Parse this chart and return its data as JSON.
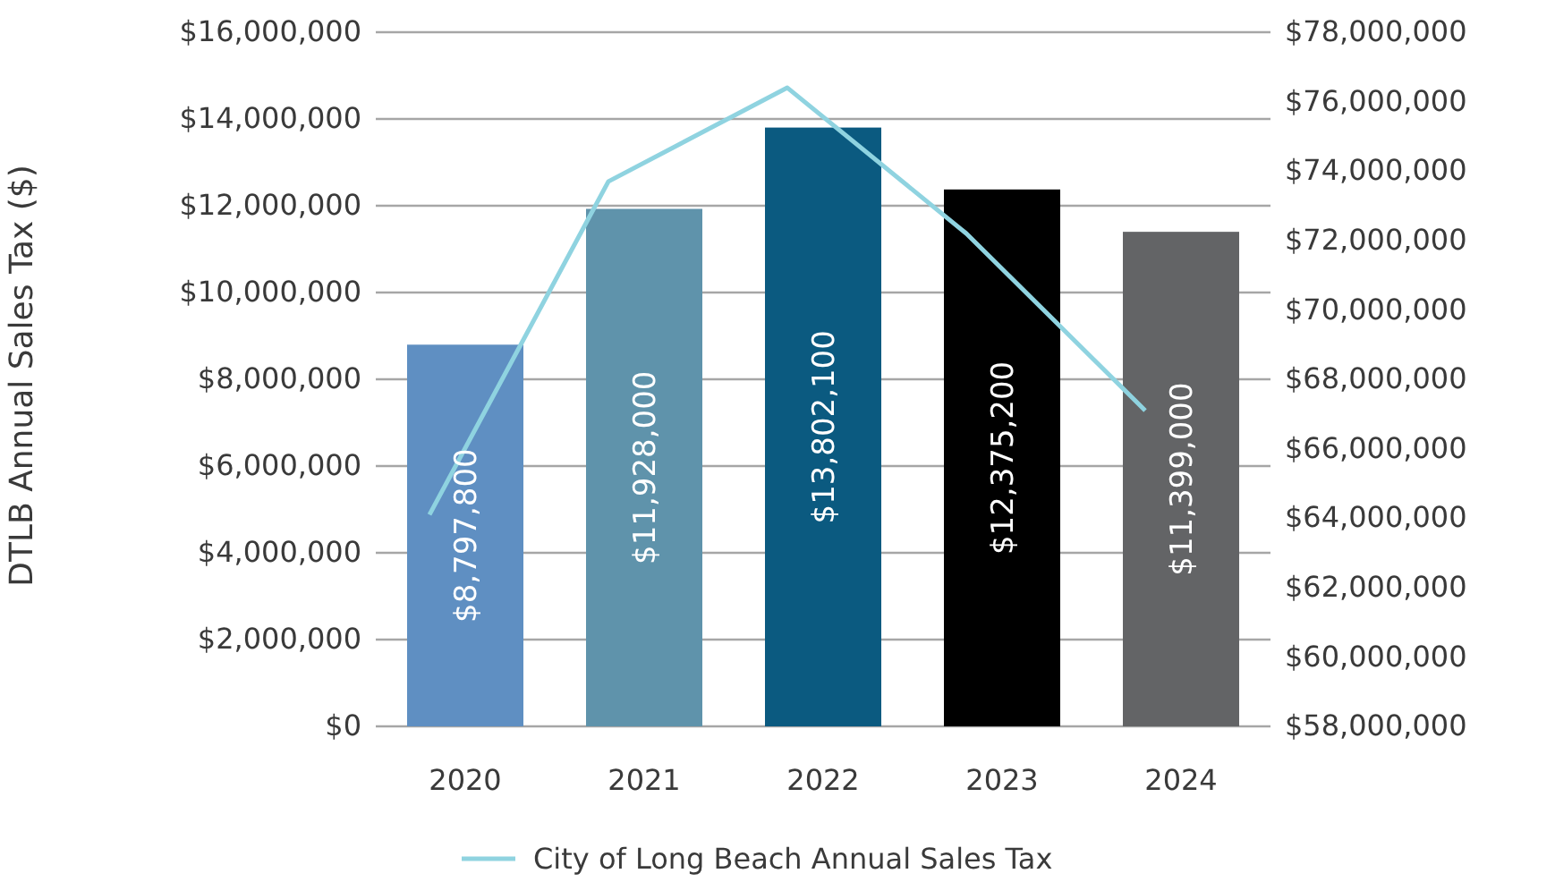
{
  "chart_data": {
    "type": "bar",
    "ylabel": "DTLB Annual Sales Tax ($)",
    "categories": [
      "2020",
      "2021",
      "2022",
      "2023",
      "2024"
    ],
    "series": [
      {
        "colors": [
          "#5f8fc2",
          "#5f93ab",
          "#0b5a80",
          "#000000",
          "#636466"
        ],
        "values": [
          8797800,
          11928000,
          13802100,
          12375200,
          11399000
        ],
        "value_labels": [
          "$8,797,800",
          "$11,928,000",
          "$13,802,100",
          "$12,375,200",
          "$11,399,000"
        ]
      },
      {
        "type": "line",
        "name": "City of Long Beach Annual Sales Tax",
        "color": "#8fd3e0",
        "axis": "y2",
        "values": [
          64100000,
          73700000,
          76400000,
          72200000,
          67100000
        ]
      }
    ],
    "ylim": [
      0,
      16000000
    ],
    "yticks": [
      {
        "value": 0,
        "label": "$0"
      },
      {
        "value": 2000000,
        "label": "$2,000,000"
      },
      {
        "value": 4000000,
        "label": "$4,000,000"
      },
      {
        "value": 6000000,
        "label": "$6,000,000"
      },
      {
        "value": 8000000,
        "label": "$8,000,000"
      },
      {
        "value": 10000000,
        "label": "$10,000,000"
      },
      {
        "value": 12000000,
        "label": "$12,000,000"
      },
      {
        "value": 14000000,
        "label": "$14,000,000"
      },
      {
        "value": 16000000,
        "label": "$16,000,000"
      }
    ],
    "y2lim": [
      58000000,
      78000000
    ],
    "y2ticks": [
      {
        "value": 58000000,
        "label": "$58,000,000"
      },
      {
        "value": 60000000,
        "label": "$60,000,000"
      },
      {
        "value": 62000000,
        "label": "$62,000,000"
      },
      {
        "value": 64000000,
        "label": "$64,000,000"
      },
      {
        "value": 66000000,
        "label": "$66,000,000"
      },
      {
        "value": 68000000,
        "label": "$68,000,000"
      },
      {
        "value": 70000000,
        "label": "$70,000,000"
      },
      {
        "value": 72000000,
        "label": "$72,000,000"
      },
      {
        "value": 74000000,
        "label": "$74,000,000"
      },
      {
        "value": 76000000,
        "label": "$76,000,000"
      },
      {
        "value": 78000000,
        "label": "$78,000,000"
      }
    ],
    "grid": "y",
    "legend": "bottom",
    "marker": "none",
    "line_style": "solid"
  }
}
